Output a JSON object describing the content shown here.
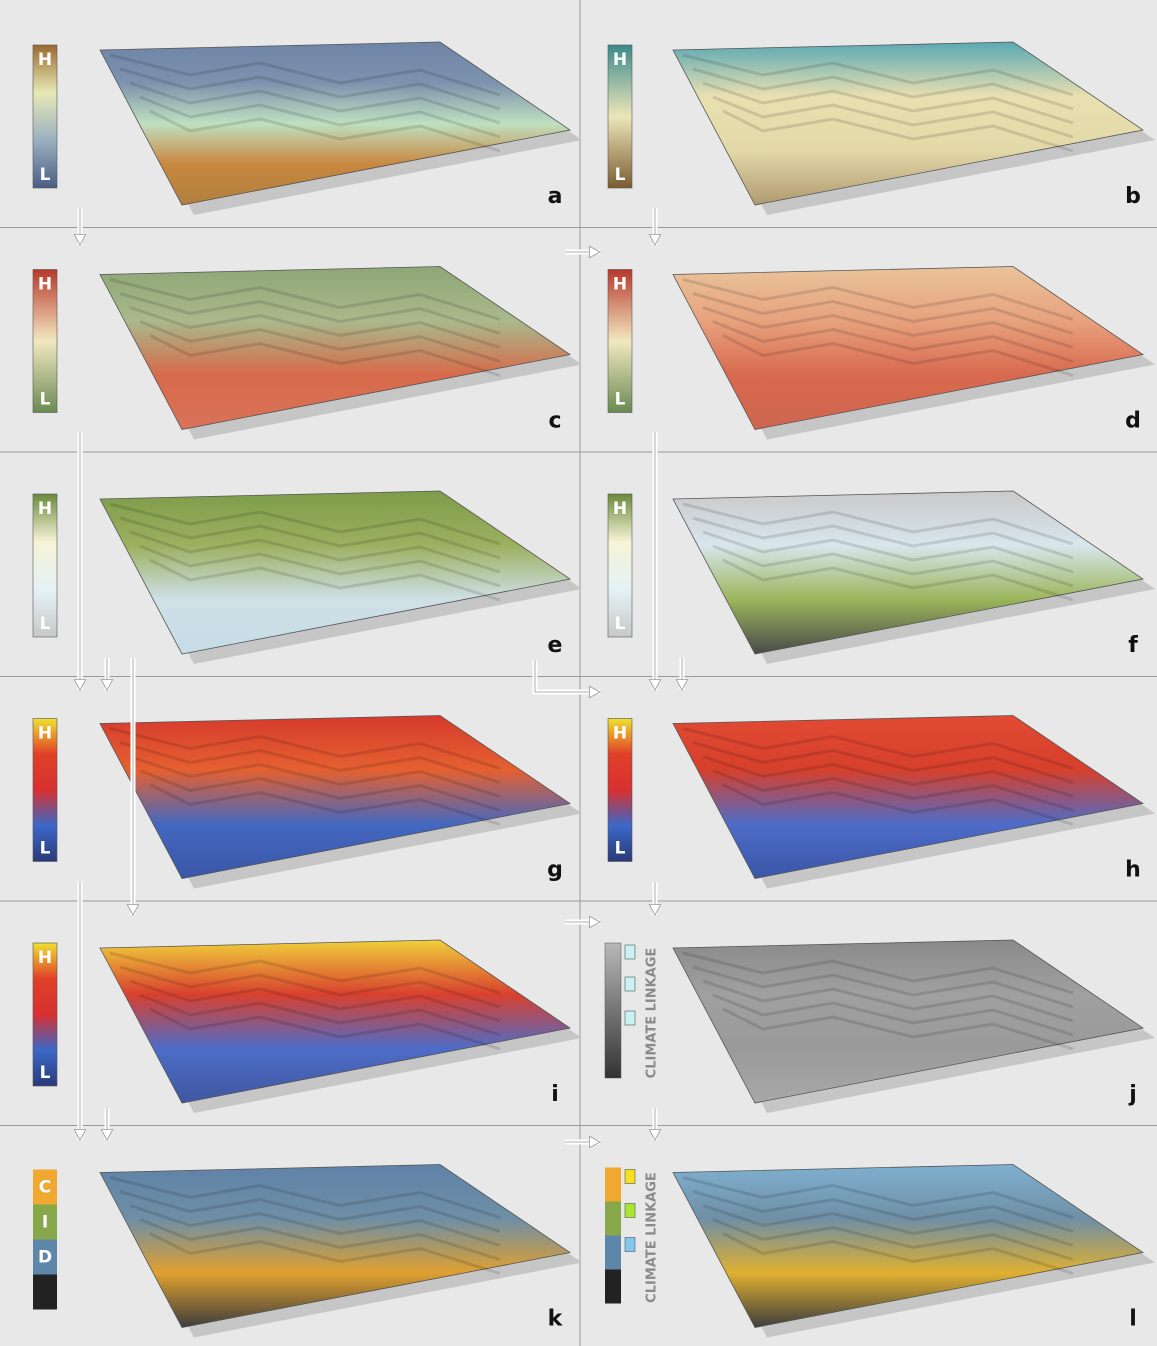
{
  "panels": [
    {
      "letter": "a",
      "legend": {
        "top": "H",
        "bottom": "L"
      }
    },
    {
      "letter": "b",
      "legend": {
        "top": "H",
        "bottom": "L"
      }
    },
    {
      "letter": "c",
      "legend": {
        "top": "H",
        "bottom": "L"
      }
    },
    {
      "letter": "d",
      "legend": {
        "top": "H",
        "bottom": "L"
      }
    },
    {
      "letter": "e",
      "legend": {
        "top": "H",
        "bottom": "L"
      }
    },
    {
      "letter": "f",
      "legend": {
        "top": "H",
        "bottom": "L"
      }
    },
    {
      "letter": "g",
      "legend": {
        "top": "H",
        "bottom": "L"
      }
    },
    {
      "letter": "h",
      "legend": {
        "top": "H",
        "bottom": "L"
      }
    },
    {
      "letter": "i",
      "legend": {
        "top": "H",
        "bottom": "L"
      }
    },
    {
      "letter": "j",
      "legend_title": "CLIMATE LINKAGE"
    },
    {
      "letter": "k",
      "legend": [
        "C",
        "I",
        "D"
      ]
    },
    {
      "letter": "l",
      "legend_title": "CLIMATE LINKAGE"
    }
  ]
}
